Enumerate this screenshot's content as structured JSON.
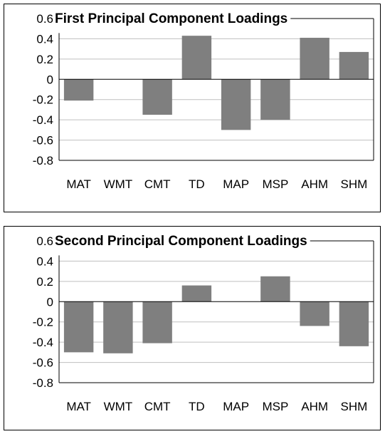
{
  "chart_data": [
    {
      "type": "bar",
      "title": "First Principal Component Loadings",
      "categories": [
        "MAT",
        "WMT",
        "CMT",
        "TD",
        "MAP",
        "MSP",
        "AHM",
        "SHM"
      ],
      "values": [
        -0.21,
        0.0,
        -0.35,
        0.43,
        -0.5,
        -0.4,
        0.41,
        0.27
      ],
      "ylim": [
        -0.8,
        0.6
      ],
      "yticks": [
        "0.6",
        "0.4",
        "0.2",
        "0",
        "-0.2",
        "-0.4",
        "-0.6",
        "-0.8"
      ],
      "xlabel": "",
      "ylabel": "",
      "grid": true,
      "bar_color": "#7f7f7f",
      "grid_color": "#bfbfbf"
    },
    {
      "type": "bar",
      "title": "Second Principal Component Loadings",
      "categories": [
        "MAT",
        "WMT",
        "CMT",
        "TD",
        "MAP",
        "MSP",
        "AHM",
        "SHM"
      ],
      "values": [
        -0.5,
        -0.51,
        -0.41,
        0.16,
        0.0,
        0.25,
        -0.24,
        -0.44
      ],
      "ylim": [
        -0.8,
        0.6
      ],
      "yticks": [
        "0.6",
        "0.4",
        "0.2",
        "0",
        "-0.2",
        "-0.4",
        "-0.6",
        "-0.8"
      ],
      "xlabel": "",
      "ylabel": "",
      "grid": true,
      "bar_color": "#7f7f7f",
      "grid_color": "#bfbfbf"
    }
  ]
}
